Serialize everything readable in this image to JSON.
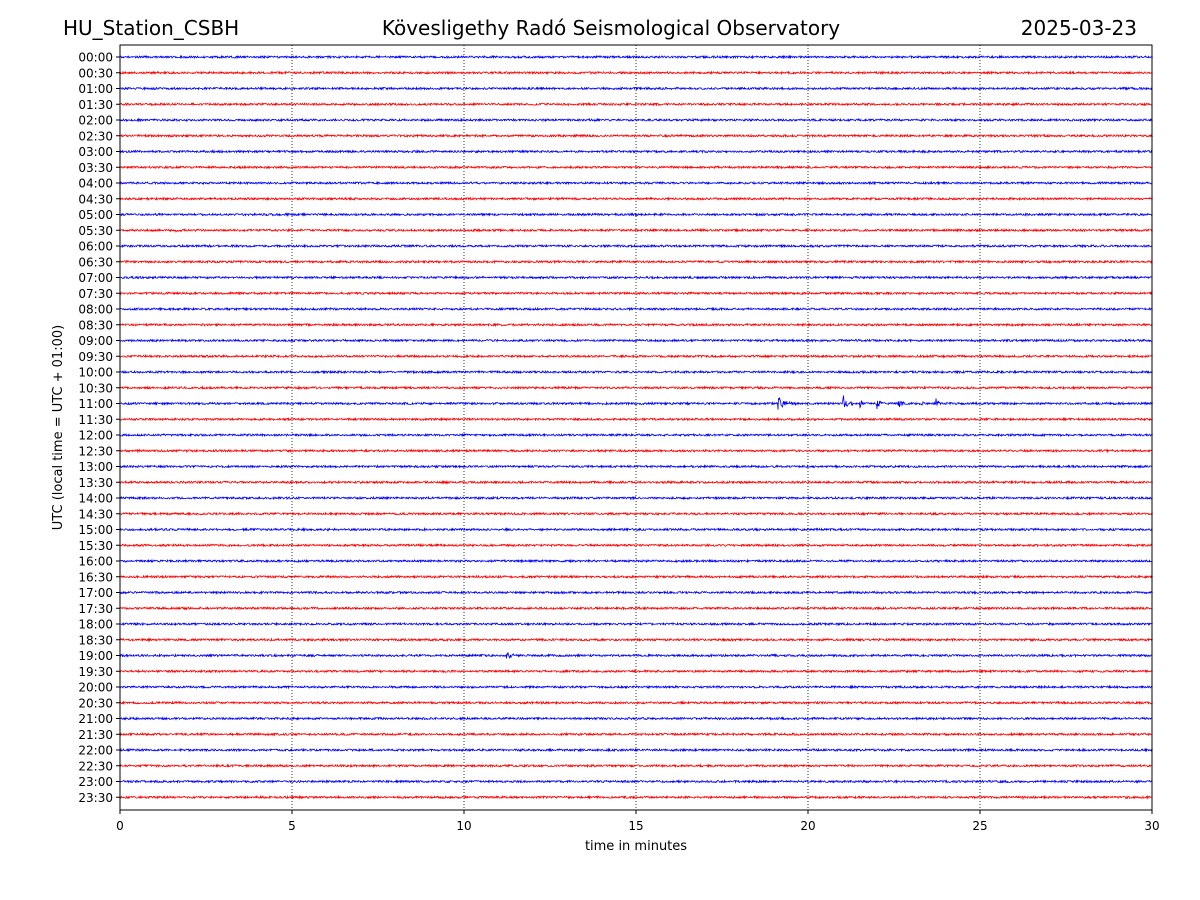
{
  "header": {
    "station": "HU_Station_CSBH",
    "title": "Kövesligethy Radó Seismological Observatory",
    "date": "2025-03-23"
  },
  "colors": {
    "even_trace": "#0000ff",
    "odd_trace": "#ff0000",
    "axis": "#000000",
    "grid": "#000000",
    "background": "#ffffff"
  },
  "chart_data": {
    "type": "line",
    "title": "Kövesligethy Radó Seismological Observatory",
    "xlabel": "time in minutes",
    "ylabel": "UTC (local time = UTC + 01:00)",
    "xlim": [
      0,
      30
    ],
    "xticks": [
      0,
      5,
      10,
      15,
      20,
      25,
      30
    ],
    "grid": "vertical dotted at x ticks",
    "trace_labels": [
      "00:00",
      "00:30",
      "01:00",
      "01:30",
      "02:00",
      "02:30",
      "03:00",
      "03:30",
      "04:00",
      "04:30",
      "05:00",
      "05:30",
      "06:00",
      "06:30",
      "07:00",
      "07:30",
      "08:00",
      "08:30",
      "09:00",
      "09:30",
      "10:00",
      "10:30",
      "11:00",
      "11:30",
      "12:00",
      "12:30",
      "13:00",
      "13:30",
      "14:00",
      "14:30",
      "15:00",
      "15:30",
      "16:00",
      "16:30",
      "17:00",
      "17:30",
      "18:00",
      "18:30",
      "19:00",
      "19:30",
      "20:00",
      "20:30",
      "21:00",
      "21:30",
      "22:00",
      "22:30",
      "23:00",
      "23:30"
    ],
    "trace_colors": "alternating blue (hour) and red (half hour)",
    "noise_amplitude": 1,
    "events": [
      {
        "trace": "11:00",
        "start_min": 19.1,
        "end_min": 19.7,
        "amplitude": 9
      },
      {
        "trace": "11:00",
        "start_min": 21.0,
        "end_min": 21.3,
        "amplitude": 11
      },
      {
        "trace": "11:00",
        "start_min": 21.5,
        "end_min": 21.65,
        "amplitude": 7
      },
      {
        "trace": "11:00",
        "start_min": 22.0,
        "end_min": 22.2,
        "amplitude": 9
      },
      {
        "trace": "11:00",
        "start_min": 22.6,
        "end_min": 23.1,
        "amplitude": 5
      },
      {
        "trace": "11:00",
        "start_min": 23.3,
        "end_min": 23.5,
        "amplitude": 6
      },
      {
        "trace": "11:00",
        "start_min": 23.7,
        "end_min": 23.9,
        "amplitude": 7
      },
      {
        "trace": "19:00",
        "start_min": 11.2,
        "end_min": 11.8,
        "amplitude": 5
      },
      {
        "trace": "05:30",
        "start_min": 1.6,
        "end_min": 2.2,
        "amplitude": 2
      },
      {
        "trace": "23:30",
        "start_min": 26.2,
        "end_min": 26.8,
        "amplitude": 2
      }
    ]
  }
}
